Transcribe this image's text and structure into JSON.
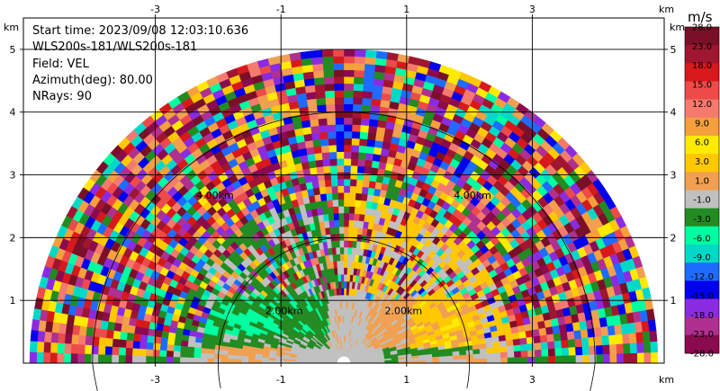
{
  "info": {
    "start_time": "Start time: 2023/09/08 12:03:10.636",
    "station": "WLS200s-181/WLS200s-181",
    "field": "Field: VEL",
    "azimuth": "Azimuth(deg): 80.00",
    "nrays": "NRays: 90"
  },
  "colorbar": {
    "unit": "m/s",
    "labels": [
      "28.0",
      "23.0",
      "18.0",
      "15.0",
      "12.0",
      "9.0",
      "6.0",
      "3.0",
      "1.0",
      "-1.0",
      "-3.0",
      "-6.0",
      "-9.0",
      "-12.0",
      "-15.0",
      "-18.0",
      "-23.0",
      "-28.0"
    ],
    "colors": [
      "#7a0f28",
      "#a01530",
      "#d7191c",
      "#ee4a4a",
      "#f47a6e",
      "#f5a03c",
      "#ffea00",
      "#ffc800",
      "#f0a050",
      "#c0c0c0",
      "#228b22",
      "#00ffa0",
      "#00d9c8",
      "#1e6bff",
      "#0000ee",
      "#8a2be2",
      "#b03090",
      "#8b0a50"
    ]
  },
  "chart_data": {
    "type": "heatmap",
    "title": "",
    "xlabel": "km",
    "ylabel": "km",
    "xlim": [
      -5.1,
      5.1
    ],
    "ylim": [
      0,
      5.5
    ],
    "x_ticks": [
      -3,
      -1,
      1,
      3
    ],
    "y_ticks": [
      1,
      2,
      3,
      4,
      5
    ],
    "tick_labels_x": [
      "-3",
      "-1",
      "1",
      "3"
    ],
    "tick_labels_y": [
      "1",
      "2",
      "3",
      "4",
      "5"
    ],
    "range_rings_km": [
      2,
      4
    ],
    "range_ring_labels": [
      "2.00km",
      "2.00km",
      "4.00km",
      "4.00km"
    ],
    "max_range_km": 5.0,
    "scan": "RHI",
    "field": "VEL",
    "grid": true
  }
}
